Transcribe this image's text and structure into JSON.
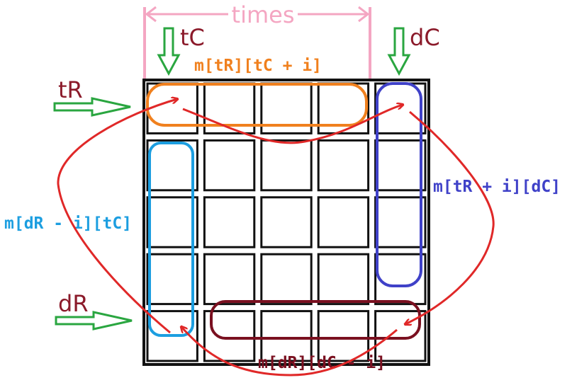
{
  "colors": {
    "background": "#ffffff",
    "grid": "#111111",
    "pink": "#f4a6c2",
    "green": "#2aa640",
    "maroon": "#8b1a2a",
    "orange": "#f0801e",
    "purple_blue": "#3f41c8",
    "cyan": "#1c9ee0",
    "dark_red": "#7a1020",
    "red_arrow": "#e02828"
  },
  "grid": {
    "rows": 5,
    "cols": 5
  },
  "labels": {
    "times": "times",
    "tC": "tC",
    "dC": "dC",
    "tR": "tR",
    "dR": "dR",
    "top_edge": "m[tR][tC + i]",
    "right_edge": "m[tR + i][dC]",
    "left_edge": "m[dR - i][tC]",
    "bottom_edge": "m[dR][dC - i]"
  },
  "icons": {
    "pointer_tc": "down-arrow-icon",
    "pointer_dc": "down-arrow-icon",
    "pointer_tr": "right-arrow-icon",
    "pointer_dr": "right-arrow-icon"
  }
}
